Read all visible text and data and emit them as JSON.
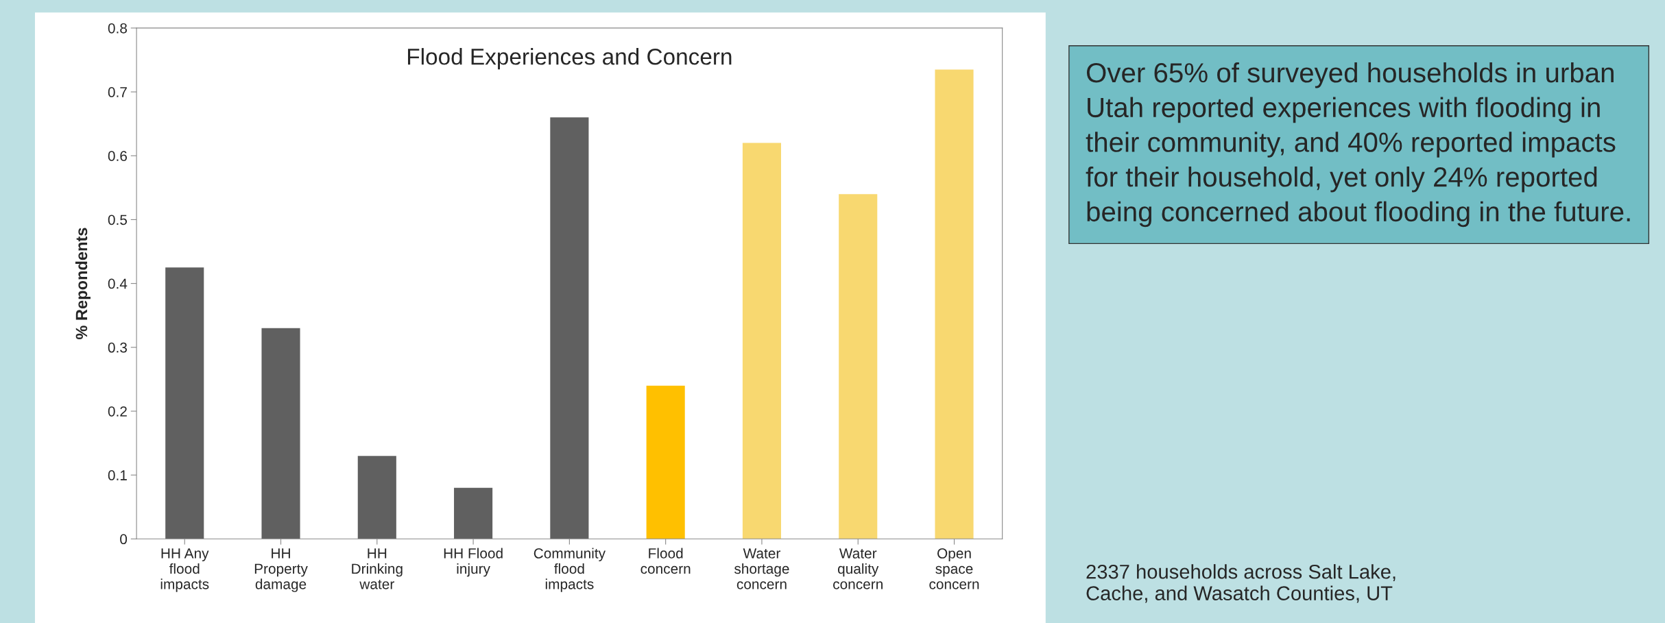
{
  "chart_data": {
    "type": "bar",
    "title": "Flood Experiences and Concern",
    "ylabel": "% Repondents",
    "categories": [
      "HH Any\nflood\nimpacts",
      "HH\nProperty\ndamage",
      "HH\nDrinking\nwater",
      "HH Flood\ninjury",
      "Community\nflood\nimpacts",
      "Flood\nconcern",
      "Water\nshortage\nconcern",
      "Water\nquality\nconcern",
      "Open\nspace\nconcern"
    ],
    "values": [
      0.425,
      0.33,
      0.13,
      0.08,
      0.66,
      0.24,
      0.62,
      0.54,
      0.735
    ],
    "colors": [
      "#606060",
      "#606060",
      "#606060",
      "#606060",
      "#606060",
      "#ffc000",
      "#f8d870",
      "#f8d870",
      "#f8d870"
    ],
    "ylim": [
      0,
      0.8
    ],
    "yticks": [
      0,
      0.1,
      0.2,
      0.3,
      0.4,
      0.5,
      0.6,
      0.7,
      0.8
    ],
    "grid": false,
    "legend": false,
    "annotations": [
      "Over 65% of surveyed households in urban Utah reported experiences with flooding in their community, and 40% reported impacts for their household, yet only 24% reported being concerned about flooding in the future.",
      "2337 households across Salt Lake, Cache, and Wasatch Counties, UT"
    ]
  }
}
